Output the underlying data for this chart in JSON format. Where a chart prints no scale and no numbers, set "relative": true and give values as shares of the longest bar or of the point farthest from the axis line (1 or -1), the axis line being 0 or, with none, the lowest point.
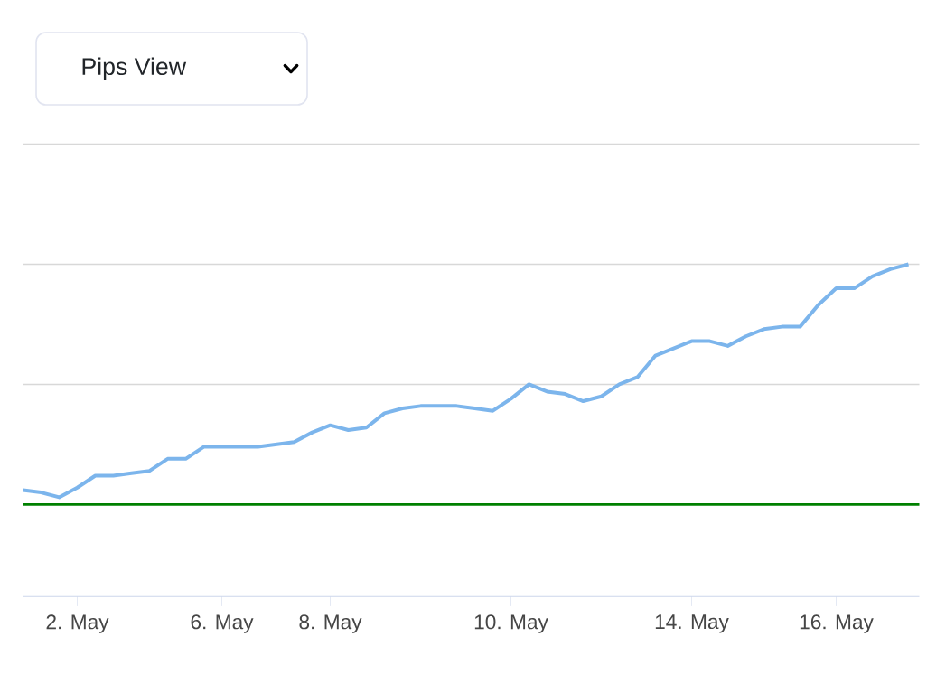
{
  "chart_data": {
    "type": "line",
    "relative": true,
    "annotations": [
      "Pips View"
    ],
    "categories": [
      null,
      null,
      null,
      "2. May",
      null,
      null,
      null,
      null,
      null,
      null,
      null,
      "6. May",
      null,
      null,
      null,
      null,
      null,
      "8. May",
      null,
      null,
      null,
      null,
      null,
      null,
      null,
      null,
      null,
      "10. May",
      null,
      null,
      null,
      null,
      null,
      null,
      null,
      null,
      null,
      "14. May",
      null,
      null,
      null,
      null,
      null,
      null,
      null,
      "16. May",
      null,
      null,
      null,
      null
    ],
    "series": [
      {
        "color": "#7cb5ec",
        "values": [
          0.06,
          0.05,
          0.03,
          0.07,
          0.12,
          0.12,
          0.13,
          0.14,
          0.19,
          0.19,
          0.24,
          0.24,
          0.24,
          0.24,
          0.25,
          0.26,
          0.3,
          0.33,
          0.31,
          0.32,
          0.38,
          0.4,
          0.41,
          0.41,
          0.41,
          0.4,
          0.39,
          0.44,
          0.5,
          0.47,
          0.46,
          0.43,
          0.45,
          0.5,
          0.53,
          0.62,
          0.65,
          0.68,
          0.68,
          0.66,
          0.7,
          0.73,
          0.74,
          0.74,
          0.83,
          0.9,
          0.9,
          0.95,
          0.98,
          1
        ]
      }
    ],
    "ref_lines": [
      {
        "axis": "y",
        "value": 0,
        "color": "#008000"
      },
      {
        "axis": "y",
        "value": 0.5,
        "color": "#d8d8d8"
      },
      {
        "axis": "y",
        "value": 1,
        "color": "#d8d8d8"
      },
      {
        "axis": "y",
        "value": 1.5,
        "color": "#d8d8d8"
      }
    ],
    "tick_labels": "x",
    "marker": "none",
    "line_style": "solid"
  }
}
